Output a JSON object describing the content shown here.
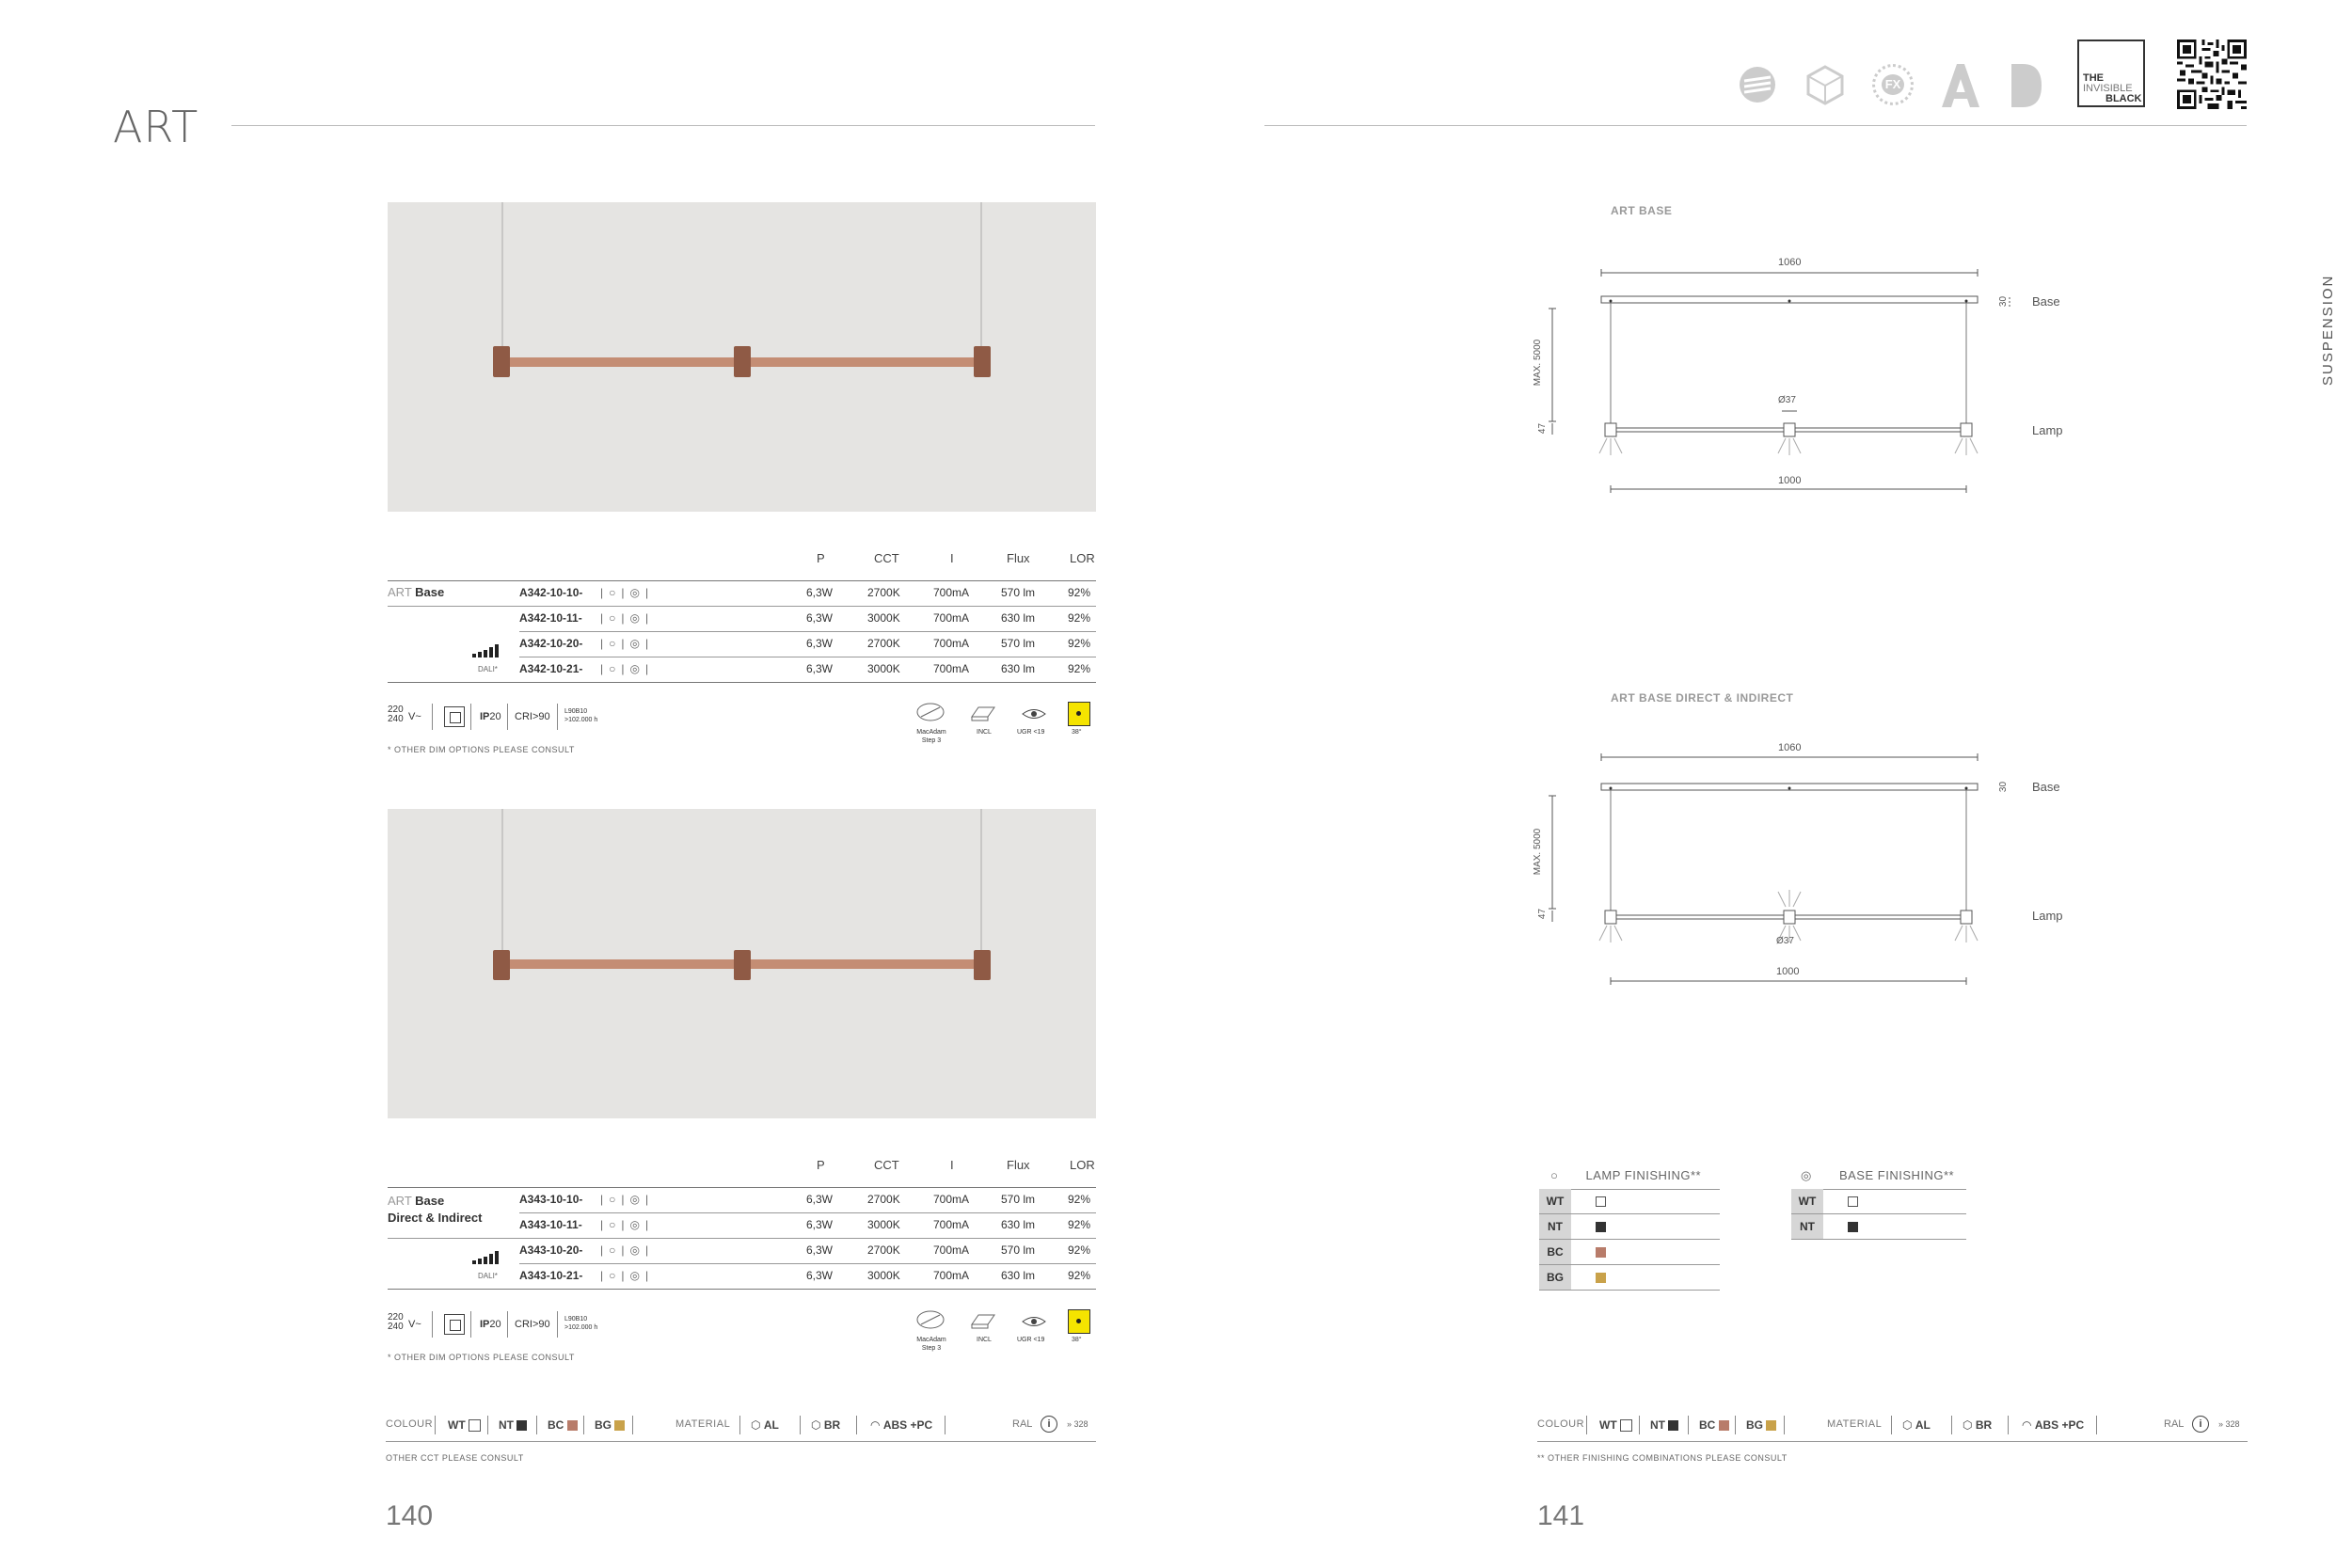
{
  "header": {
    "title": "ART"
  },
  "side_label": "SUSPENSION",
  "logos": {
    "brand_tag": [
      "THE",
      "INVISIBLE",
      "BLACK"
    ],
    "fx_logo": "FX"
  },
  "table_headers": [
    "P",
    "CCT",
    "I",
    "Flux",
    "LOR"
  ],
  "products": [
    {
      "name_prefix": "ART",
      "name": "Base",
      "name_line2": "",
      "dali": "DALI*",
      "rows": [
        {
          "code": "A342-10-10-",
          "P": "6,3W",
          "CCT": "2700K",
          "I": "700mA",
          "Flux": "570 lm",
          "LOR": "92%"
        },
        {
          "code": "A342-10-11-",
          "P": "6,3W",
          "CCT": "3000K",
          "I": "700mA",
          "Flux": "630 lm",
          "LOR": "92%"
        },
        {
          "code": "A342-10-20-",
          "P": "6,3W",
          "CCT": "2700K",
          "I": "700mA",
          "Flux": "570 lm",
          "LOR": "92%"
        },
        {
          "code": "A342-10-21-",
          "P": "6,3W",
          "CCT": "3000K",
          "I": "700mA",
          "Flux": "630 lm",
          "LOR": "92%"
        }
      ],
      "note": "* OTHER DIM OPTIONS PLEASE CONSULT"
    },
    {
      "name_prefix": "ART",
      "name": "Base",
      "name_line2": "Direct & Indirect",
      "dali": "DALI*",
      "rows": [
        {
          "code": "A343-10-10-",
          "P": "6,3W",
          "CCT": "2700K",
          "I": "700mA",
          "Flux": "570 lm",
          "LOR": "92%"
        },
        {
          "code": "A343-10-11-",
          "P": "6,3W",
          "CCT": "3000K",
          "I": "700mA",
          "Flux": "630 lm",
          "LOR": "92%"
        },
        {
          "code": "A343-10-20-",
          "P": "6,3W",
          "CCT": "2700K",
          "I": "700mA",
          "Flux": "570 lm",
          "LOR": "92%"
        },
        {
          "code": "A343-10-21-",
          "P": "6,3W",
          "CCT": "3000K",
          "I": "700mA",
          "Flux": "630 lm",
          "LOR": "92%"
        }
      ],
      "note": "* OTHER DIM OPTIONS PLEASE CONSULT"
    }
  ],
  "specs": {
    "voltage_top": "220",
    "voltage_bottom": "240",
    "voltage_unit": "V~",
    "ip_label": "IP",
    "ip_value": "20",
    "cri": "CRI>90",
    "lifetime_top": "L90B10",
    "lifetime_bottom": ">102.000 h",
    "macadam": "MacAdam",
    "macadam_step": "Step 3",
    "driver": "INCL",
    "ugr": "UGR <19",
    "beam": "38°"
  },
  "footer_left": {
    "colour_label": "COLOUR",
    "colours": [
      {
        "code": "WT",
        "color": "#ffffff"
      },
      {
        "code": "NT",
        "color": "#333333"
      },
      {
        "code": "BC",
        "color": "#b87c6a"
      },
      {
        "code": "BG",
        "color": "#c9a24a"
      }
    ],
    "material_label": "MATERIAL",
    "materials": [
      "AL",
      "BR",
      "ABS +PC"
    ],
    "ral_label": "RAL",
    "ral_page": "» 328",
    "note": "OTHER CCT PLEASE CONSULT",
    "page": "140"
  },
  "footer_right": {
    "note": "** OTHER FINISHING COMBINATIONS PLEASE CONSULT",
    "page": "141"
  },
  "drawings": [
    {
      "title": "ART BASE",
      "overall": "1060",
      "base_h": "30",
      "base": "Base",
      "max": "MAX. 5000",
      "diameter": "Ø37",
      "lamp_h": "47",
      "lamp": "Lamp",
      "length": "1000"
    },
    {
      "title": "ART BASE DIRECT & INDIRECT",
      "overall": "1060",
      "base_h": "30",
      "base": "Base",
      "max": "MAX. 5000",
      "diameter": "Ø37",
      "lamp_h": "47",
      "lamp": "Lamp",
      "length": "1000"
    }
  ],
  "finishing": {
    "lamp_title": "LAMP FINISHING**",
    "lamp": [
      {
        "code": "WT",
        "color": "#ffffff"
      },
      {
        "code": "NT",
        "color": "#333333"
      },
      {
        "code": "BC",
        "color": "#b87c6a"
      },
      {
        "code": "BG",
        "color": "#c9a24a"
      }
    ],
    "base_title": "BASE FINISHING**",
    "base": [
      {
        "code": "WT",
        "color": "#ffffff"
      },
      {
        "code": "NT",
        "color": "#333333"
      }
    ]
  },
  "colors": {
    "photo_bg": "#e5e4e2",
    "copper": "#b8826b",
    "beam_badge": "#f5e400"
  }
}
